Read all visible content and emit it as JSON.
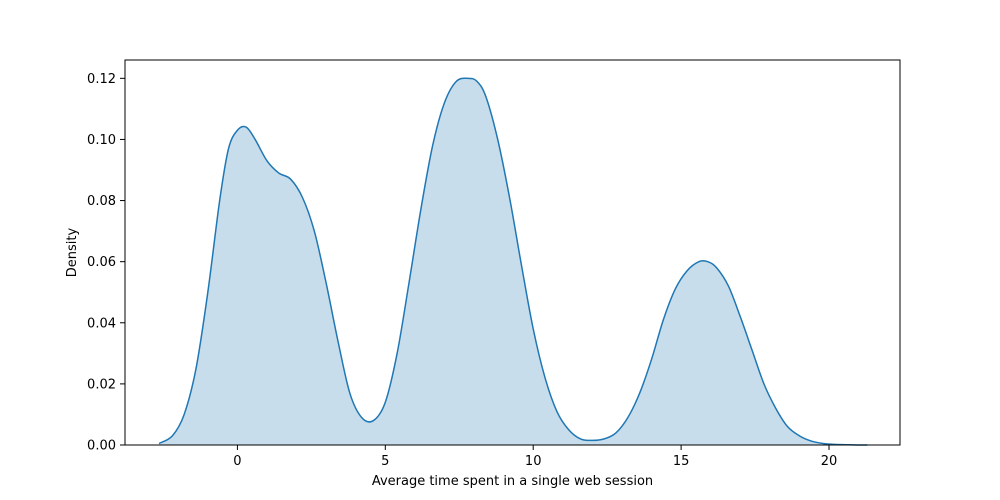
{
  "chart_data": {
    "type": "area",
    "title": "",
    "xlabel": "Average time spent in a single web session",
    "ylabel": "Density",
    "xlim": [
      -3.8,
      22.4
    ],
    "ylim": [
      0,
      0.126
    ],
    "x_ticks": [
      0,
      5,
      10,
      15,
      20
    ],
    "x_tick_labels": [
      "0",
      "5",
      "10",
      "15",
      "20"
    ],
    "y_ticks": [
      0,
      0.02,
      0.04,
      0.06,
      0.08,
      0.1,
      0.12
    ],
    "y_tick_labels": [
      "0.00",
      "0.02",
      "0.04",
      "0.06",
      "0.08",
      "0.10",
      "0.12"
    ],
    "grid": false,
    "legend": "none",
    "colors": {
      "line": "#1f77b4",
      "fill": "#1f77b4",
      "fill_opacity": 0.25
    },
    "series": [
      {
        "x": [
          -2.65,
          -2.2,
          -1.8,
          -1.4,
          -1.0,
          -0.6,
          -0.3,
          0.0,
          0.3,
          0.6,
          1.0,
          1.4,
          1.8,
          2.2,
          2.6,
          3.0,
          3.4,
          3.8,
          4.2,
          4.6,
          5.0,
          5.4,
          5.8,
          6.2,
          6.6,
          7.0,
          7.4,
          7.8,
          8.1,
          8.4,
          8.8,
          9.2,
          9.6,
          10.0,
          10.4,
          10.8,
          11.2,
          11.6,
          12.0,
          12.4,
          12.8,
          13.2,
          13.6,
          14.0,
          14.4,
          14.8,
          15.2,
          15.6,
          15.9,
          16.2,
          16.6,
          17.0,
          17.4,
          17.8,
          18.2,
          18.6,
          19.0,
          19.4,
          19.8,
          20.2,
          20.6,
          21.0,
          21.3
        ],
        "y": [
          0.0005,
          0.003,
          0.01,
          0.025,
          0.05,
          0.08,
          0.097,
          0.103,
          0.104,
          0.1,
          0.093,
          0.089,
          0.087,
          0.081,
          0.07,
          0.053,
          0.034,
          0.017,
          0.009,
          0.008,
          0.014,
          0.03,
          0.053,
          0.077,
          0.098,
          0.112,
          0.119,
          0.12,
          0.119,
          0.114,
          0.1,
          0.081,
          0.059,
          0.038,
          0.022,
          0.011,
          0.005,
          0.002,
          0.0015,
          0.002,
          0.004,
          0.009,
          0.017,
          0.028,
          0.041,
          0.051,
          0.057,
          0.06,
          0.06,
          0.058,
          0.052,
          0.042,
          0.031,
          0.02,
          0.012,
          0.006,
          0.003,
          0.0013,
          0.0005,
          0.0002,
          0.0001,
          0.0,
          0.0
        ]
      }
    ]
  }
}
